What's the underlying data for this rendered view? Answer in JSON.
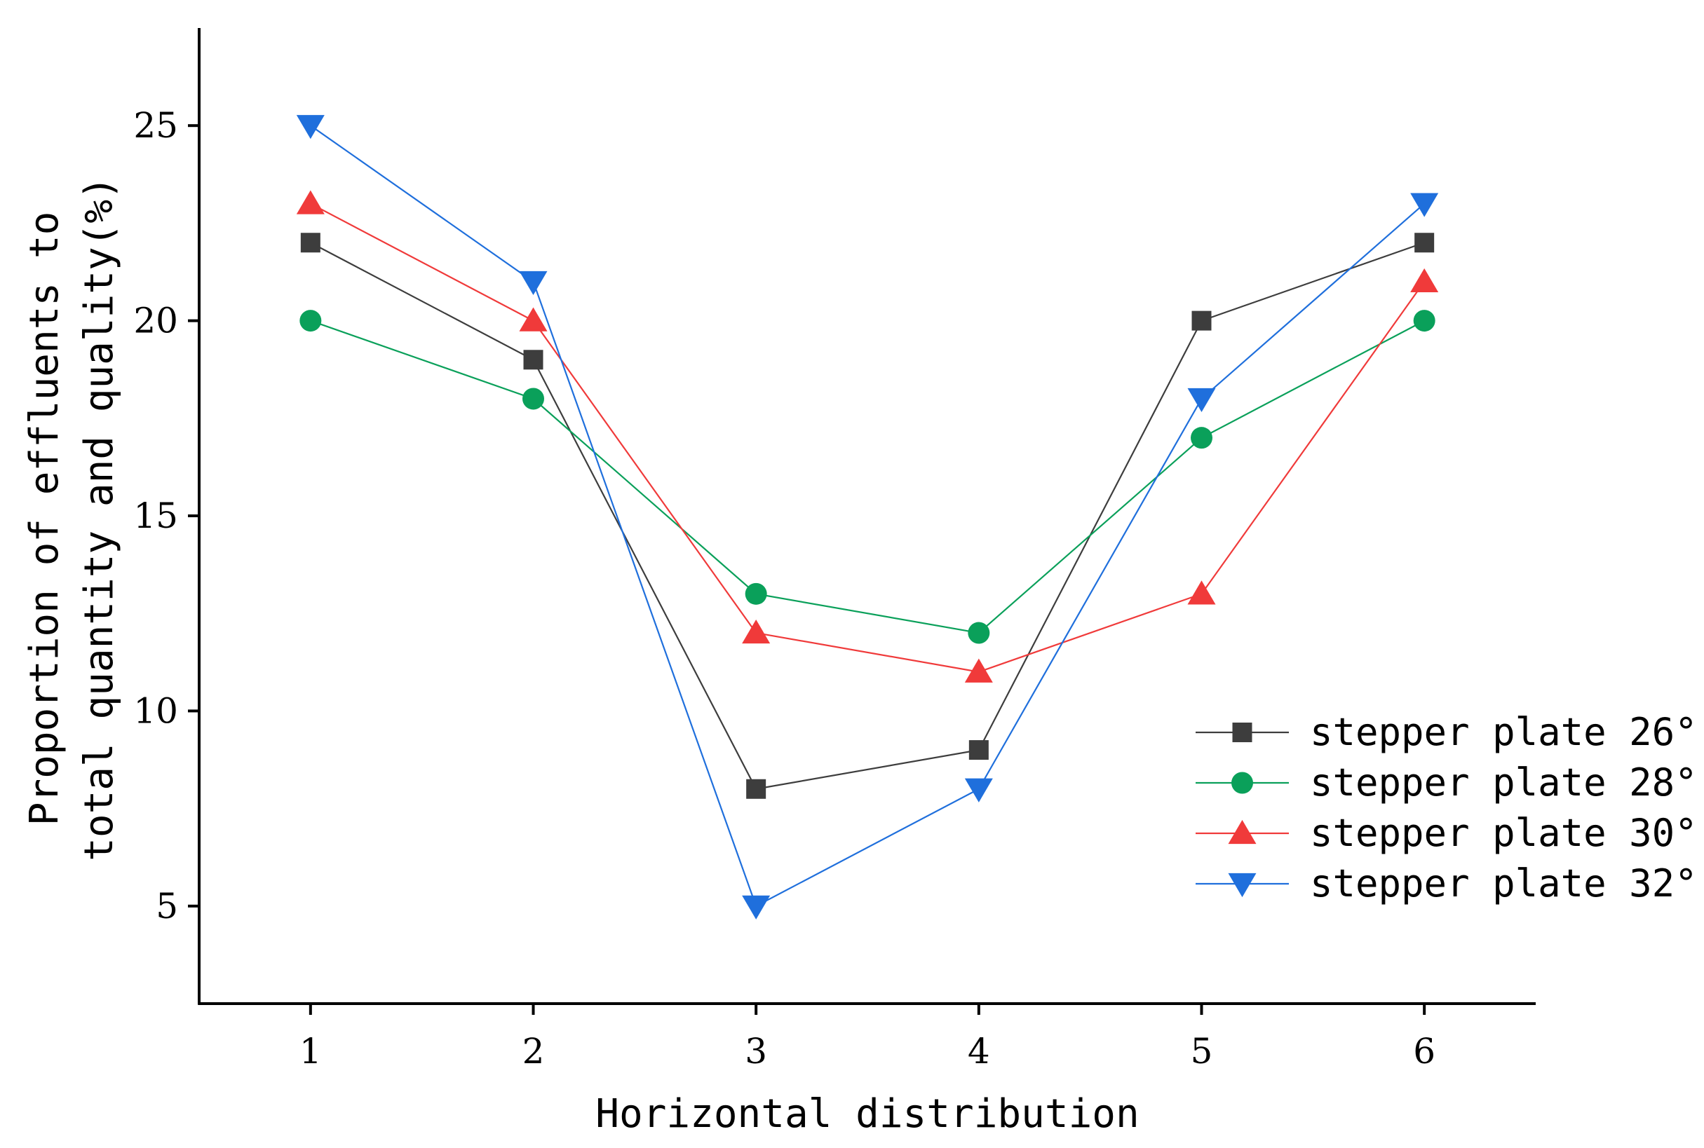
{
  "chart_data": {
    "type": "line",
    "title": "",
    "xlabel": "Horizontal distribution",
    "ylabel": [
      "Proportion of effluents to",
      "total quantity and quality(%)"
    ],
    "x": [
      1,
      2,
      3,
      4,
      5,
      6
    ],
    "x_ticks": [
      "1",
      "2",
      "3",
      "4",
      "5",
      "6"
    ],
    "y_ticks": [
      "5",
      "10",
      "15",
      "20",
      "25"
    ],
    "xlim": [
      0.5,
      6.5
    ],
    "ylim": [
      2.5,
      27.5
    ],
    "grid": false,
    "legend_position": "center-right",
    "series": [
      {
        "name": "stepper plate 26°",
        "marker": "square",
        "color": "#3d3d3d",
        "values": [
          22,
          19,
          8,
          9,
          20,
          22
        ]
      },
      {
        "name": "stepper plate 28°",
        "marker": "circle",
        "color": "#0aa05a",
        "values": [
          20,
          18,
          13,
          12,
          17,
          20
        ]
      },
      {
        "name": "stepper plate 30°",
        "marker": "triangle-up",
        "color": "#f03a3a",
        "values": [
          23,
          20,
          12,
          11,
          13,
          21
        ]
      },
      {
        "name": "stepper plate 32°",
        "marker": "triangle-down",
        "color": "#1f6fdc",
        "values": [
          25,
          21,
          5,
          8,
          18,
          23
        ]
      }
    ]
  }
}
